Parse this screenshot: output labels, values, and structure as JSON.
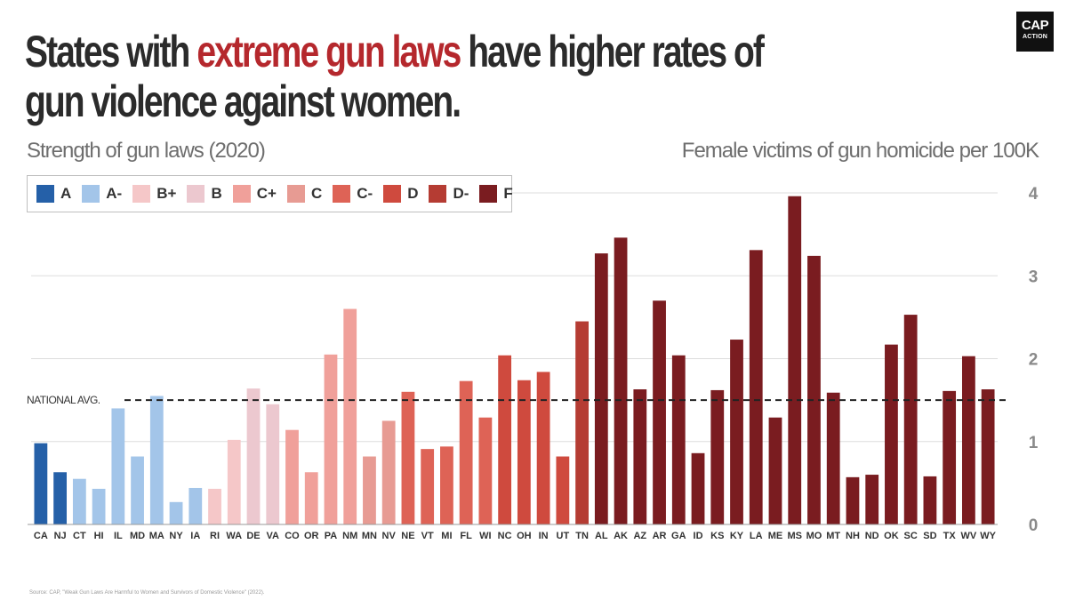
{
  "header": {
    "title_part1": "States with ",
    "title_highlight": "extreme gun laws",
    "title_part2": " have higher rates of gun violence against women.",
    "logo_line1": "CAP",
    "logo_line2": "ACTION"
  },
  "subtitle_left": "Strength of gun laws (2020)",
  "subtitle_right": "Female victims of gun homicide per 100K",
  "source": "Source: CAP, \"Weak Gun Laws Are Harmful to Women and Survivors of Domestic Violence\" (2022).",
  "colors": {
    "highlight": "#b5282d",
    "A": "#2560a8",
    "A-": "#a3c5e9",
    "B+": "#f5c7c8",
    "B": "#ecc8cf",
    "C+": "#f0a09a",
    "C": "#e79b93",
    "C-": "#de6356",
    "D": "#cf4a3e",
    "D-": "#b53c33",
    "F": "#7a1c20"
  },
  "legend": [
    {
      "grade": "A",
      "color": "#2560a8"
    },
    {
      "grade": "A-",
      "color": "#a3c5e9"
    },
    {
      "grade": "B+",
      "color": "#f5c7c8"
    },
    {
      "grade": "B",
      "color": "#ecc8cf"
    },
    {
      "grade": "C+",
      "color": "#f0a09a"
    },
    {
      "grade": "C",
      "color": "#e79b93"
    },
    {
      "grade": "C-",
      "color": "#de6356"
    },
    {
      "grade": "D",
      "color": "#cf4a3e"
    },
    {
      "grade": "D-",
      "color": "#b53c33"
    },
    {
      "grade": "F",
      "color": "#7a1c20"
    }
  ],
  "chart_data": {
    "type": "bar",
    "title": "States with extreme gun laws have higher rates of gun violence against women.",
    "xlabel": "Strength of gun laws (2020)",
    "ylabel": "Female victims of gun homicide per 100K",
    "ylim": [
      0,
      4
    ],
    "yticks": [
      0,
      1,
      2,
      3,
      4
    ],
    "grid": true,
    "reference_line": {
      "label": "NATIONAL AVG.",
      "value": 1.5
    },
    "categories": [
      "CA",
      "NJ",
      "CT",
      "HI",
      "IL",
      "MD",
      "MA",
      "NY",
      "IA",
      "RI",
      "WA",
      "DE",
      "VA",
      "CO",
      "OR",
      "PA",
      "NM",
      "MN",
      "NV",
      "NE",
      "VT",
      "MI",
      "FL",
      "WI",
      "NC",
      "OH",
      "IN",
      "UT",
      "TN",
      "AL",
      "AK",
      "AZ",
      "AR",
      "GA",
      "ID",
      "KS",
      "KY",
      "LA",
      "ME",
      "MS",
      "MO",
      "MT",
      "NH",
      "ND",
      "OK",
      "SC",
      "SD",
      "TX",
      "WV",
      "WY"
    ],
    "values": [
      0.98,
      0.63,
      0.55,
      0.43,
      1.4,
      0.82,
      1.55,
      0.27,
      0.44,
      0.43,
      1.02,
      1.64,
      1.45,
      1.14,
      0.63,
      2.05,
      2.6,
      0.82,
      1.25,
      1.6,
      0.91,
      0.94,
      1.73,
      1.29,
      2.04,
      1.74,
      1.84,
      0.82,
      2.45,
      3.27,
      3.46,
      1.63,
      2.7,
      2.04,
      0.86,
      1.62,
      2.23,
      3.31,
      1.29,
      3.96,
      3.24,
      1.59,
      0.57,
      0.6,
      2.17,
      2.53,
      0.58,
      1.61,
      2.03,
      1.63
    ],
    "grades": [
      "A",
      "A",
      "A-",
      "A-",
      "A-",
      "A-",
      "A-",
      "A-",
      "A-",
      "B+",
      "B+",
      "B",
      "B",
      "C+",
      "C+",
      "C+",
      "C+",
      "C",
      "C",
      "C-",
      "C-",
      "C-",
      "C-",
      "C-",
      "D",
      "D",
      "D",
      "D",
      "D-",
      "F",
      "F",
      "F",
      "F",
      "F",
      "F",
      "F",
      "F",
      "F",
      "F",
      "F",
      "F",
      "F",
      "F",
      "F",
      "F",
      "F",
      "F",
      "F",
      "F",
      "F"
    ]
  }
}
